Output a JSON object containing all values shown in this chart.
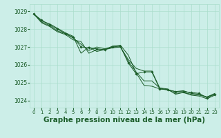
{
  "background_color": "#cceee8",
  "grid_color": "#aaddcc",
  "line_color": "#1a5c28",
  "marker_color": "#1a5c28",
  "xlabel": "Graphe pression niveau de la mer (hPa)",
  "xlabel_fontsize": 7.5,
  "xticks": [
    0,
    1,
    2,
    3,
    4,
    5,
    6,
    7,
    8,
    9,
    10,
    11,
    12,
    13,
    14,
    15,
    16,
    17,
    18,
    19,
    20,
    21,
    22,
    23
  ],
  "yticks": [
    1024,
    1025,
    1026,
    1027,
    1028,
    1029
  ],
  "ylim": [
    1023.6,
    1029.4
  ],
  "xlim": [
    -0.5,
    23.5
  ],
  "series1": [
    1028.85,
    1028.45,
    1028.3,
    1028.05,
    1027.8,
    1027.6,
    1026.65,
    1027.0,
    1026.75,
    1026.85,
    1027.05,
    1027.1,
    1026.55,
    1025.55,
    1024.85,
    1024.8,
    1024.65,
    1024.6,
    1024.4,
    1024.45,
    1024.35,
    1024.3,
    1024.2,
    1024.4
  ],
  "series2": [
    1028.85,
    1028.5,
    1028.25,
    1028.0,
    1027.75,
    1027.55,
    1027.0,
    1026.95,
    1026.9,
    1026.85,
    1027.0,
    1027.05,
    1026.1,
    1025.5,
    1025.6,
    1025.6,
    1024.65,
    1024.6,
    1024.5,
    1024.5,
    1024.45,
    1024.4,
    1024.15,
    1024.35
  ],
  "series3": [
    1028.85,
    1028.35,
    1028.15,
    1027.85,
    1027.7,
    1027.4,
    1027.3,
    1026.65,
    1026.85,
    1026.85,
    1026.95,
    1027.0,
    1026.3,
    1025.8,
    1025.65,
    1025.65,
    1024.7,
    1024.65,
    1024.35,
    1024.45,
    1024.3,
    1024.25,
    1024.1,
    1024.3
  ],
  "series4": [
    1028.85,
    1028.4,
    1028.2,
    1027.9,
    1027.75,
    1027.5,
    1027.15,
    1026.8,
    1027.0,
    1026.9,
    1027.0,
    1027.0,
    1026.2,
    1025.6,
    1025.1,
    1025.1,
    1024.7,
    1024.6,
    1024.5,
    1024.55,
    1024.4,
    1024.35,
    1024.2,
    1024.35
  ]
}
